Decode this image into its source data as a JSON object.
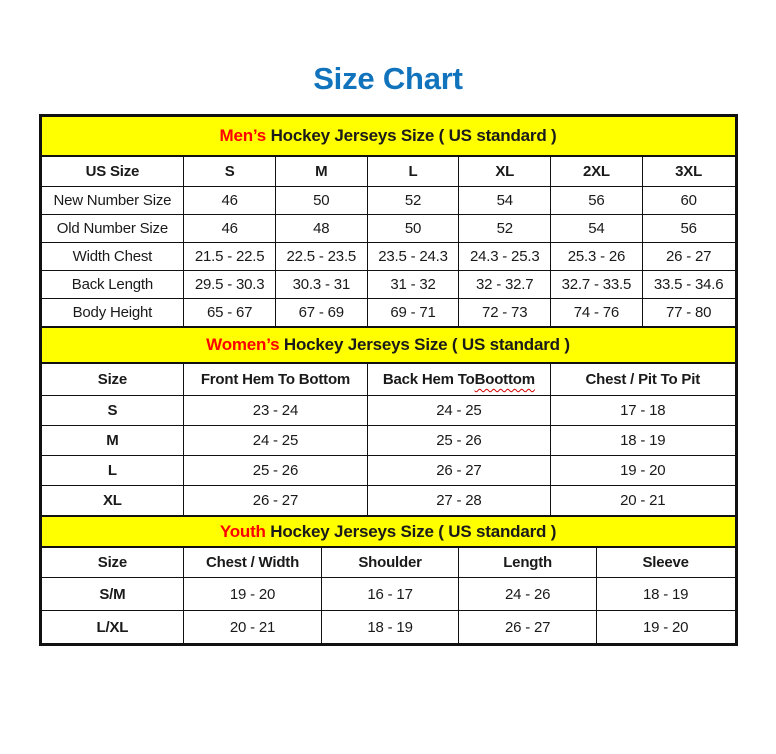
{
  "page": {
    "title": "Size Chart",
    "title_color": "#1273BD",
    "band_color": "#FFFF00",
    "accent_color": "#FF0000"
  },
  "tables": {
    "men": {
      "band_prefix": "Men’s",
      "band_rest": " Hockey Jerseys Size ( US standard )",
      "columns": [
        "US Size",
        "S",
        "M",
        "L",
        "XL",
        "2XL",
        "3XL"
      ],
      "rows": [
        [
          "New Number Size",
          "46",
          "50",
          "52",
          "54",
          "56",
          "60"
        ],
        [
          "Old Number Size",
          "46",
          "48",
          "50",
          "52",
          "54",
          "56"
        ],
        [
          "Width Chest",
          "21.5 - 22.5",
          "22.5 - 23.5",
          "23.5 - 24.3",
          "24.3 - 25.3",
          "25.3 - 26",
          "26 - 27"
        ],
        [
          "Back Length",
          "29.5 - 30.3",
          "30.3 - 31",
          "31 - 32",
          "32 - 32.7",
          "32.7 - 33.5",
          "33.5 - 34.6"
        ],
        [
          "Body Height",
          "65 - 67",
          "67 - 69",
          "69 - 71",
          "72 - 73",
          "74 - 76",
          "77 - 80"
        ]
      ]
    },
    "women": {
      "band_prefix": "Women’s",
      "band_rest": " Hockey Jerseys Size ( US standard )",
      "columns": [
        "Size",
        "Front Hem To Bottom",
        "Back Hem To Boottom",
        "Chest / Pit To Pit"
      ],
      "spellcheck_word": "Boottom",
      "rows": [
        [
          "S",
          "23 - 24",
          "24 - 25",
          "17 - 18"
        ],
        [
          "M",
          "24 - 25",
          "25 - 26",
          "18 - 19"
        ],
        [
          "L",
          "25 - 26",
          "26 - 27",
          "19 - 20"
        ],
        [
          "XL",
          "26 - 27",
          "27 - 28",
          "20 - 21"
        ]
      ]
    },
    "youth": {
      "band_prefix": "Youth",
      "band_rest": " Hockey Jerseys Size ( US standard )",
      "columns": [
        "Size",
        "Chest / Width",
        "Shoulder",
        "Length",
        "Sleeve"
      ],
      "rows": [
        [
          "S/M",
          "19 - 20",
          "16 - 17",
          "24 - 26",
          "18 - 19"
        ],
        [
          "L/XL",
          "20 - 21",
          "18 - 19",
          "26 - 27",
          "19 - 20"
        ]
      ]
    }
  }
}
